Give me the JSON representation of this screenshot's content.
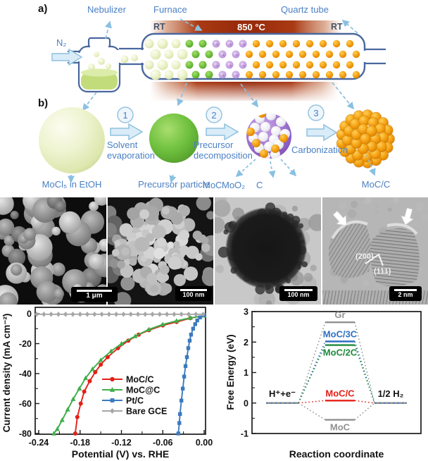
{
  "panel_a": {
    "label": "a)",
    "nebulizer": "Nebulizer",
    "furnace": "Furnace",
    "quartz_tube": "Quartz tube",
    "gas": "N₂",
    "rt_left": "RT",
    "temperature": "850 °C",
    "rt_right": "RT",
    "particle_stages": [
      {
        "name": "precursor-droplet",
        "color": "#e9efc8"
      },
      {
        "name": "dried-particle",
        "color": "#6fc13f"
      },
      {
        "name": "decomposed-particle",
        "color": "#b violet"
      },
      {
        "name": "carbide-particle",
        "color": "#ef9414"
      }
    ]
  },
  "panel_b": {
    "label": "b)",
    "steps": [
      {
        "num": "1",
        "label": "Solvent evaporation"
      },
      {
        "num": "2",
        "label": "Precursor decomposition"
      },
      {
        "num": "3",
        "label": "Carbonization"
      }
    ],
    "products": [
      {
        "label": "MoCl₅ in EtOH"
      },
      {
        "label": "Precursor particle"
      },
      {
        "label": "MoC"
      },
      {
        "label": "MoO₂"
      },
      {
        "label": "C"
      },
      {
        "label": "MoC/C"
      }
    ]
  },
  "microscopy": {
    "panels": [
      {
        "scale_bar": "1 μm"
      },
      {
        "scale_bar": "100 nm"
      },
      {
        "scale_bar": "100 nm"
      },
      {
        "scale_bar": "2 nm",
        "annotations": [
          "(200)",
          "(111)"
        ]
      }
    ]
  },
  "chart_data": [
    {
      "type": "line",
      "xlabel": "Potential (V) vs. RHE",
      "ylabel": "Current density (mA cm⁻²)",
      "xlim": [
        -0.245,
        0.002
      ],
      "ylim": [
        -80,
        4
      ],
      "xticks": [
        -0.24,
        -0.18,
        -0.12,
        -0.06,
        0.0
      ],
      "xtick_labels": [
        "-0.24",
        "-0.18",
        "-0.12",
        "-0.06",
        "0.00"
      ],
      "yticks": [
        0,
        -20,
        -40,
        -60,
        -80
      ],
      "ytick_labels": [
        "0",
        "-20",
        "-40",
        "-60",
        "-80"
      ],
      "grid": false,
      "legend_position": "center-right",
      "series": [
        {
          "name": "MoC/C",
          "color": "#e32017",
          "marker": "circle",
          "points": [
            [
              0,
              -1.2
            ],
            [
              -0.02,
              -3
            ],
            [
              -0.04,
              -5.5
            ],
            [
              -0.06,
              -7.8
            ],
            [
              -0.08,
              -11
            ],
            [
              -0.095,
              -14
            ],
            [
              -0.11,
              -18
            ],
            [
              -0.125,
              -23
            ],
            [
              -0.14,
              -29
            ],
            [
              -0.15,
              -34
            ],
            [
              -0.158,
              -39
            ],
            [
              -0.166,
              -45
            ],
            [
              -0.174,
              -52
            ],
            [
              -0.179,
              -60
            ],
            [
              -0.184,
              -69
            ],
            [
              -0.187,
              -80
            ]
          ]
        },
        {
          "name": "MoC@C",
          "color": "#3fae49",
          "marker": "triangle",
          "points": [
            [
              0,
              -1.3
            ],
            [
              -0.02,
              -2.8
            ],
            [
              -0.04,
              -4.8
            ],
            [
              -0.06,
              -7.2
            ],
            [
              -0.08,
              -10.5
            ],
            [
              -0.1,
              -15
            ],
            [
              -0.12,
              -20
            ],
            [
              -0.135,
              -25
            ],
            [
              -0.15,
              -31
            ],
            [
              -0.162,
              -37
            ],
            [
              -0.172,
              -43
            ],
            [
              -0.181,
              -50
            ],
            [
              -0.19,
              -57
            ],
            [
              -0.198,
              -64
            ],
            [
              -0.206,
              -71
            ],
            [
              -0.213,
              -77
            ],
            [
              -0.218,
              -80
            ]
          ]
        },
        {
          "name": "Pt/C",
          "color": "#3a7abf",
          "marker": "square",
          "points": [
            [
              0,
              -1
            ],
            [
              -0.006,
              -2.5
            ],
            [
              -0.01,
              -4.5
            ],
            [
              -0.013,
              -7
            ],
            [
              -0.016,
              -10
            ],
            [
              -0.019,
              -14
            ],
            [
              -0.021,
              -18
            ],
            [
              -0.023,
              -23
            ],
            [
              -0.025,
              -29
            ],
            [
              -0.027,
              -35
            ],
            [
              -0.029,
              -42
            ],
            [
              -0.031,
              -50
            ],
            [
              -0.033,
              -58
            ],
            [
              -0.035,
              -67
            ],
            [
              -0.036,
              -73
            ],
            [
              -0.0375,
              -80
            ]
          ]
        },
        {
          "name": "Bare GCE",
          "color": "#a6a6a6",
          "marker": "diamond",
          "points": [
            [
              -0.243,
              -0.4
            ],
            [
              0,
              -0.4
            ]
          ],
          "flat": true,
          "marker_step": 0.0105
        }
      ]
    },
    {
      "type": "energy-diagram",
      "xlabel": "Reaction coordinate",
      "ylabel": "Free Energy (eV)",
      "ylim": [
        -1,
        3
      ],
      "yticks": [
        3,
        2,
        1,
        0,
        -1
      ],
      "ytick_labels": [
        "3",
        "2",
        "1",
        "0",
        "-1"
      ],
      "left_state": {
        "label": "H⁺+e⁻",
        "energy": 0
      },
      "right_state": {
        "label": "1/2 H₂",
        "energy": 0
      },
      "levels": [
        {
          "label": "Gr",
          "energy": 2.65,
          "color": "#919191",
          "label_side": "above"
        },
        {
          "label": "MoC/3C",
          "energy": 2.02,
          "color": "#2f6fc2",
          "label_side": "above"
        },
        {
          "label": "MoC/2C",
          "energy": 1.9,
          "color": "#1e8a3c",
          "label_side": "below"
        },
        {
          "label": "MoC/C",
          "energy": 0.08,
          "color": "#e32017",
          "label_side": "above"
        },
        {
          "label": "MoC",
          "energy": -0.55,
          "color": "#919191",
          "label_side": "below"
        }
      ]
    }
  ]
}
